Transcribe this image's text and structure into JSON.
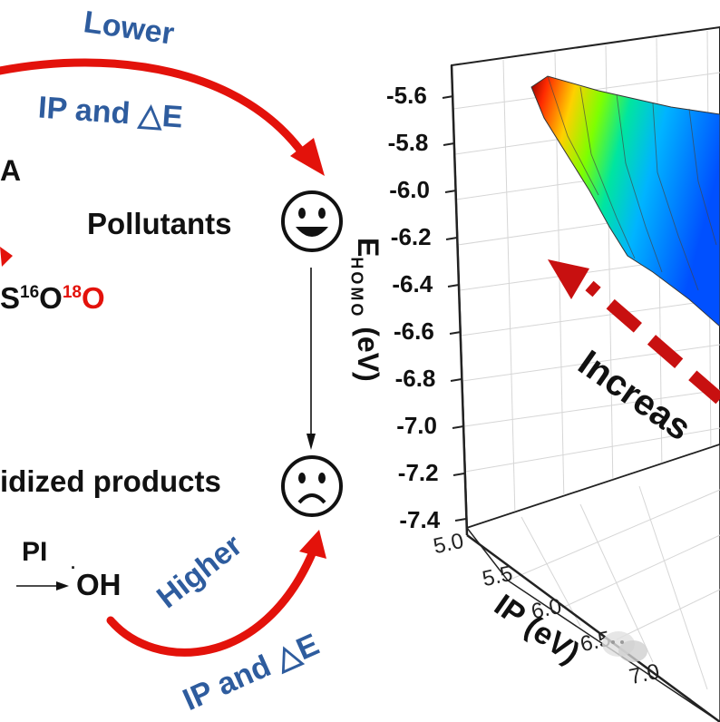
{
  "left_panel": {
    "top_arrow_label_1": "Lower",
    "top_arrow_label_2": "IP and △E",
    "partial_a": "A",
    "pollutants_label": "Pollutants",
    "isotope_prefix": "S",
    "isotope_16": "16",
    "isotope_o1": "O",
    "isotope_18": "18",
    "isotope_o2": "O",
    "oxidized_label": "idized products",
    "pi_label": "PI",
    "oh_dot": "·",
    "oh_label": "OH",
    "bottom_arrow_label_1": "Higher",
    "bottom_arrow_label_2": "IP and △E",
    "colors": {
      "blue_text": "#2e5c9e",
      "red_arrow": "#e3120b"
    }
  },
  "chart_data": {
    "type": "surface3d",
    "zlabel_main": "E",
    "zlabel_sub": "HOMO",
    "zlabel_unit": " (eV)",
    "z_ticks": [
      "-5.6",
      "-5.8",
      "-6.0",
      "-6.2",
      "-6.4",
      "-6.6",
      "-6.8",
      "-7.0",
      "-7.2",
      "-7.4"
    ],
    "x_label": "IP (eV)",
    "x_ticks": [
      "5.0",
      "5.5",
      "6.0",
      "6.5",
      "7.0"
    ],
    "annotation": "Increas",
    "colormap": [
      "#8b0000",
      "#ff2a00",
      "#ffd000",
      "#7fff00",
      "#00e5a0",
      "#00b4ff",
      "#0050ff"
    ]
  }
}
